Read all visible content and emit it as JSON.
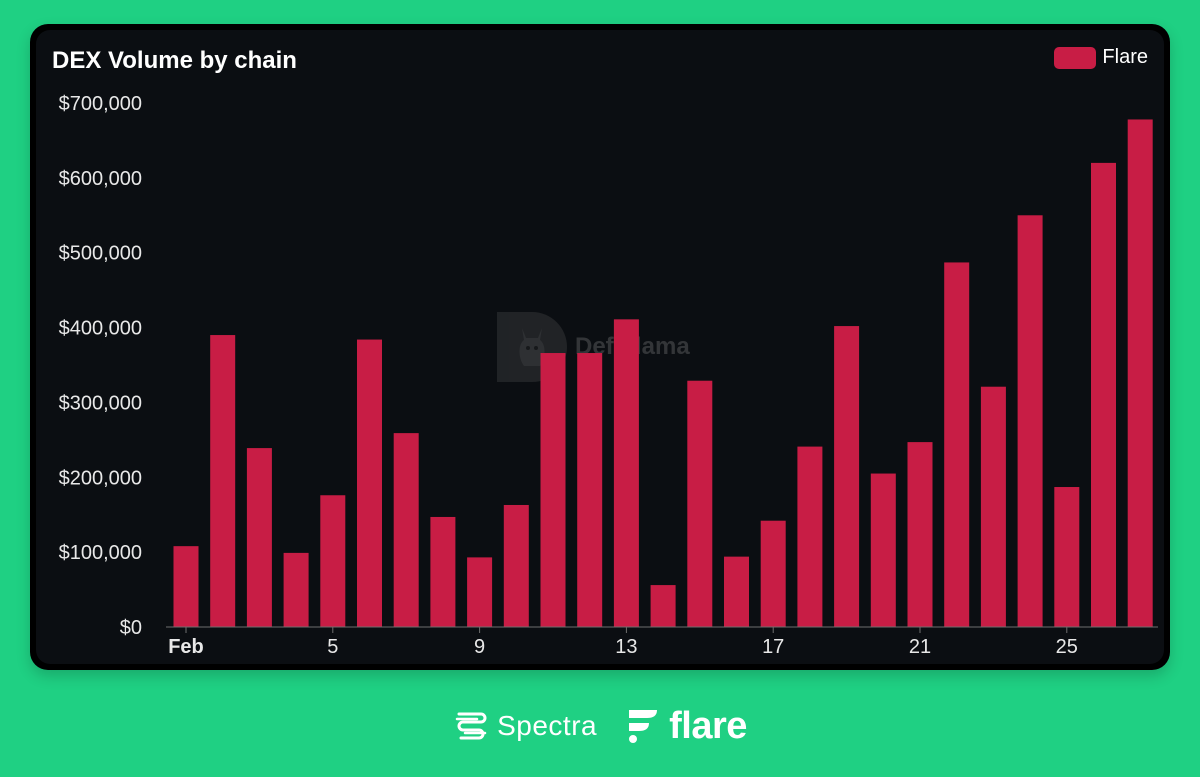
{
  "title": "DEX Volume by chain",
  "legend": {
    "label": "Flare",
    "color": "#c81d45"
  },
  "watermark": "DefiLlama",
  "footer": {
    "spectra": "Spectra",
    "flare": "flare"
  },
  "chart_data": {
    "type": "bar",
    "title": "DEX Volume by chain",
    "xlabel": "",
    "ylabel": "",
    "ylim": [
      0,
      700000
    ],
    "y_ticks": [
      0,
      100000,
      200000,
      300000,
      400000,
      500000,
      600000,
      700000
    ],
    "y_tick_labels": [
      "$0",
      "$100,000",
      "$200,000",
      "$300,000",
      "$400,000",
      "$500,000",
      "$600,000",
      "$700,000"
    ],
    "x_tick_labels": [
      {
        "day": 1,
        "label": "Feb",
        "bold": true
      },
      {
        "day": 5,
        "label": "5"
      },
      {
        "day": 9,
        "label": "9"
      },
      {
        "day": 13,
        "label": "13"
      },
      {
        "day": 17,
        "label": "17"
      },
      {
        "day": 21,
        "label": "21"
      },
      {
        "day": 25,
        "label": "25"
      }
    ],
    "days": [
      1,
      2,
      3,
      4,
      5,
      6,
      7,
      8,
      9,
      10,
      11,
      12,
      13,
      14,
      15,
      16,
      17,
      18,
      19,
      20,
      21,
      22,
      23,
      24,
      25,
      26,
      27
    ],
    "series": [
      {
        "name": "Flare",
        "color": "#c81d45",
        "values": [
          108000,
          390000,
          239000,
          99000,
          176000,
          384000,
          259000,
          147000,
          93000,
          163000,
          366000,
          366000,
          411000,
          56000,
          329000,
          94000,
          142000,
          241000,
          402000,
          205000,
          247000,
          487000,
          321000,
          550000,
          187000,
          620000,
          678000
        ]
      }
    ],
    "legend_position": "top-right",
    "grid": false
  }
}
